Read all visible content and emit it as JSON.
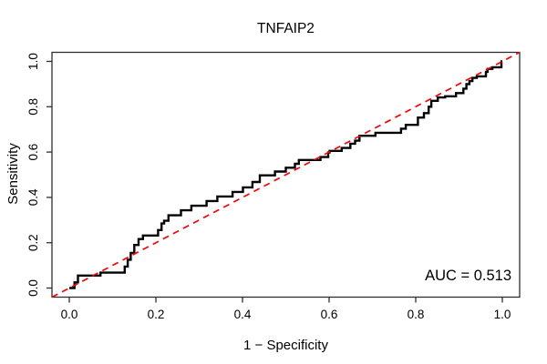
{
  "title": "TNFAIP2",
  "x_axis": {
    "label": "1 − Specificity",
    "ticks": [
      {
        "label": "0.0",
        "value": 0.0
      },
      {
        "label": "0.2",
        "value": 0.2
      },
      {
        "label": "0.4",
        "value": 0.4
      },
      {
        "label": "0.6",
        "value": 0.6
      },
      {
        "label": "0.8",
        "value": 0.8
      },
      {
        "label": "1.0",
        "value": 1.0
      }
    ]
  },
  "y_axis": {
    "label": "Sensitivity",
    "ticks": [
      {
        "label": "0.0",
        "value": 0.0
      },
      {
        "label": "0.2",
        "value": 0.2
      },
      {
        "label": "0.4",
        "value": 0.4
      },
      {
        "label": "0.6",
        "value": 0.6
      },
      {
        "label": "0.8",
        "value": 0.8
      },
      {
        "label": "1.0",
        "value": 1.0
      }
    ]
  },
  "annotation": {
    "auc_label": "AUC = 0.513"
  },
  "colors": {
    "curve": "#000000",
    "diagonal": "#FF0000",
    "box": "#2E2E2E",
    "background": "#FFFFFF",
    "text": "#000000"
  },
  "chart_data": {
    "type": "line",
    "title": "TNFAIP2",
    "xlabel": "1 − Specificity",
    "ylabel": "Sensitivity",
    "xlim": [
      -0.04,
      1.04
    ],
    "ylim": [
      -0.04,
      1.04
    ],
    "grid": false,
    "legend": "none",
    "auc_value": 0.513,
    "series": [
      {
        "name": "ROC curve (TNFAIP2)",
        "line_style": "solid",
        "color": "#000000",
        "points": [
          [
            0,
            0
          ],
          [
            0.012,
            0
          ],
          [
            0.012,
            0.025
          ],
          [
            0.02,
            0.025
          ],
          [
            0.02,
            0.055
          ],
          [
            0.072,
            0.055
          ],
          [
            0.072,
            0.068
          ],
          [
            0.128,
            0.068
          ],
          [
            0.128,
            0.095
          ],
          [
            0.135,
            0.095
          ],
          [
            0.135,
            0.125
          ],
          [
            0.142,
            0.125
          ],
          [
            0.142,
            0.155
          ],
          [
            0.15,
            0.155
          ],
          [
            0.15,
            0.19
          ],
          [
            0.16,
            0.19
          ],
          [
            0.16,
            0.216
          ],
          [
            0.17,
            0.216
          ],
          [
            0.17,
            0.232
          ],
          [
            0.205,
            0.232
          ],
          [
            0.205,
            0.256
          ],
          [
            0.213,
            0.256
          ],
          [
            0.213,
            0.285
          ],
          [
            0.219,
            0.285
          ],
          [
            0.219,
            0.297
          ],
          [
            0.229,
            0.297
          ],
          [
            0.229,
            0.321
          ],
          [
            0.258,
            0.321
          ],
          [
            0.258,
            0.343
          ],
          [
            0.282,
            0.343
          ],
          [
            0.282,
            0.363
          ],
          [
            0.317,
            0.363
          ],
          [
            0.317,
            0.384
          ],
          [
            0.342,
            0.384
          ],
          [
            0.342,
            0.404
          ],
          [
            0.377,
            0.404
          ],
          [
            0.377,
            0.424
          ],
          [
            0.401,
            0.424
          ],
          [
            0.401,
            0.444
          ],
          [
            0.423,
            0.444
          ],
          [
            0.423,
            0.468
          ],
          [
            0.44,
            0.468
          ],
          [
            0.44,
            0.497
          ],
          [
            0.475,
            0.497
          ],
          [
            0.475,
            0.514
          ],
          [
            0.5,
            0.514
          ],
          [
            0.5,
            0.531
          ],
          [
            0.521,
            0.531
          ],
          [
            0.521,
            0.548
          ],
          [
            0.53,
            0.548
          ],
          [
            0.53,
            0.565
          ],
          [
            0.58,
            0.565
          ],
          [
            0.58,
            0.578
          ],
          [
            0.598,
            0.578
          ],
          [
            0.598,
            0.598
          ],
          [
            0.601,
            0.598
          ],
          [
            0.601,
            0.605
          ],
          [
            0.629,
            0.605
          ],
          [
            0.629,
            0.618
          ],
          [
            0.649,
            0.618
          ],
          [
            0.649,
            0.637
          ],
          [
            0.66,
            0.637
          ],
          [
            0.66,
            0.65
          ],
          [
            0.67,
            0.65
          ],
          [
            0.67,
            0.672
          ],
          [
            0.707,
            0.672
          ],
          [
            0.707,
            0.685
          ],
          [
            0.766,
            0.685
          ],
          [
            0.766,
            0.703
          ],
          [
            0.777,
            0.703
          ],
          [
            0.777,
            0.72
          ],
          [
            0.805,
            0.72
          ],
          [
            0.805,
            0.752
          ],
          [
            0.819,
            0.752
          ],
          [
            0.819,
            0.772
          ],
          [
            0.83,
            0.772
          ],
          [
            0.83,
            0.8
          ],
          [
            0.836,
            0.8
          ],
          [
            0.836,
            0.826
          ],
          [
            0.851,
            0.826
          ],
          [
            0.851,
            0.841
          ],
          [
            0.868,
            0.841
          ],
          [
            0.868,
            0.846
          ],
          [
            0.893,
            0.846
          ],
          [
            0.893,
            0.86
          ],
          [
            0.91,
            0.86
          ],
          [
            0.91,
            0.88
          ],
          [
            0.917,
            0.88
          ],
          [
            0.917,
            0.9
          ],
          [
            0.924,
            0.9
          ],
          [
            0.924,
            0.913
          ],
          [
            0.931,
            0.913
          ],
          [
            0.931,
            0.927
          ],
          [
            0.941,
            0.927
          ],
          [
            0.941,
            0.934
          ],
          [
            0.962,
            0.934
          ],
          [
            0.962,
            0.954
          ],
          [
            0.966,
            0.954
          ],
          [
            0.966,
            0.967
          ],
          [
            0.977,
            0.967
          ],
          [
            0.977,
            0.974
          ],
          [
            0.998,
            0.974
          ],
          [
            0.998,
            1
          ],
          [
            1,
            1
          ]
        ]
      },
      {
        "name": "reference diagonal",
        "line_style": "dashed",
        "color": "#FF0000",
        "points": [
          [
            -0.04,
            -0.04
          ],
          [
            1.04,
            1.04
          ]
        ]
      }
    ]
  }
}
